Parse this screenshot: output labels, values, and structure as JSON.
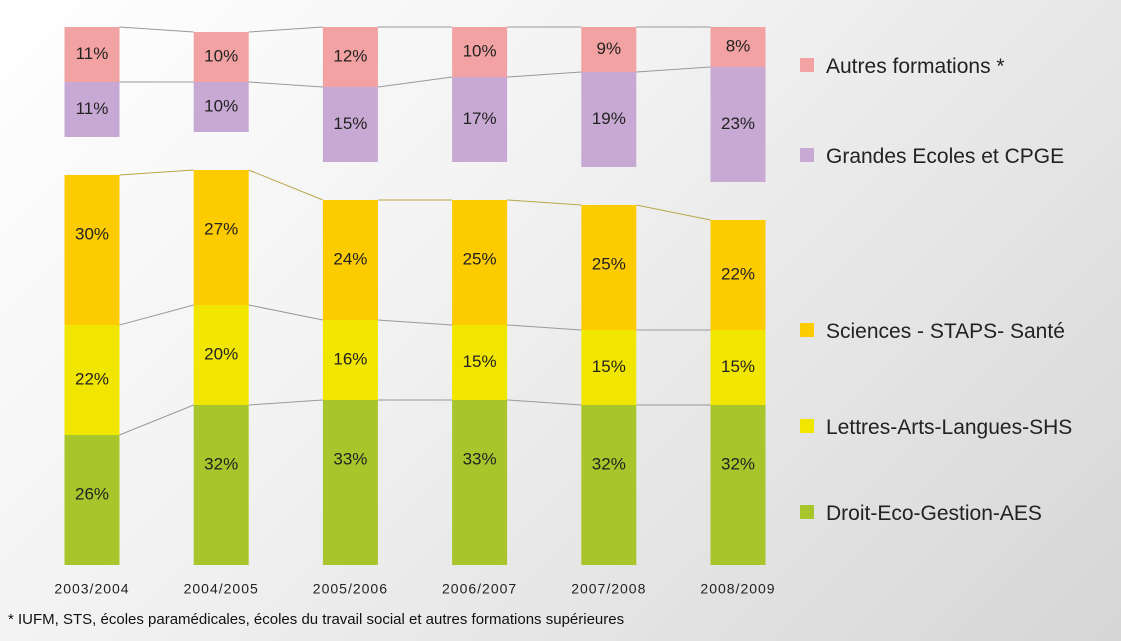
{
  "chart_data": {
    "type": "stacked_bar",
    "categories": [
      "2003/2004",
      "2004/2005",
      "2005/2006",
      "2006/2007",
      "2007/2008",
      "2008/2009"
    ],
    "ylim": [
      0,
      100
    ],
    "series": [
      {
        "name": "Droit-Eco-Gestion-AES",
        "color": "#a9c52c",
        "values": [
          26,
          32,
          33,
          33,
          32,
          32
        ],
        "value_labels": [
          "26%",
          "32%",
          "33%",
          "33%",
          "32%",
          "32%"
        ]
      },
      {
        "name": "Lettres-Arts-Langues-SHS",
        "color": "#f1e600",
        "values": [
          22,
          20,
          16,
          15,
          15,
          15
        ],
        "value_labels": [
          "22%",
          "20%",
          "16%",
          "15%",
          "15%",
          "15%"
        ]
      },
      {
        "name": "Sciences - STAPS- Santé",
        "color": "#fccb00",
        "values": [
          30,
          27,
          24,
          25,
          25,
          22
        ],
        "value_labels": [
          "30%",
          "27%",
          "24%",
          "25%",
          "25%",
          "22%"
        ]
      },
      {
        "name": "Grandes Ecoles et CPGE",
        "color": "#c8a9d3",
        "values": [
          11,
          10,
          15,
          17,
          19,
          23
        ],
        "value_labels": [
          "11%",
          "10%",
          "15%",
          "17%",
          "19%",
          "23%"
        ]
      },
      {
        "name": "Autres formations *",
        "color": "#f2a2a2",
        "values": [
          11,
          10,
          12,
          10,
          9,
          8
        ],
        "value_labels": [
          "11%",
          "10%",
          "12%",
          "10%",
          "9%",
          "8%"
        ]
      }
    ],
    "footnote": "* IUFM, STS, écoles paramédicales, écoles du travail social et autres formations supérieures"
  }
}
